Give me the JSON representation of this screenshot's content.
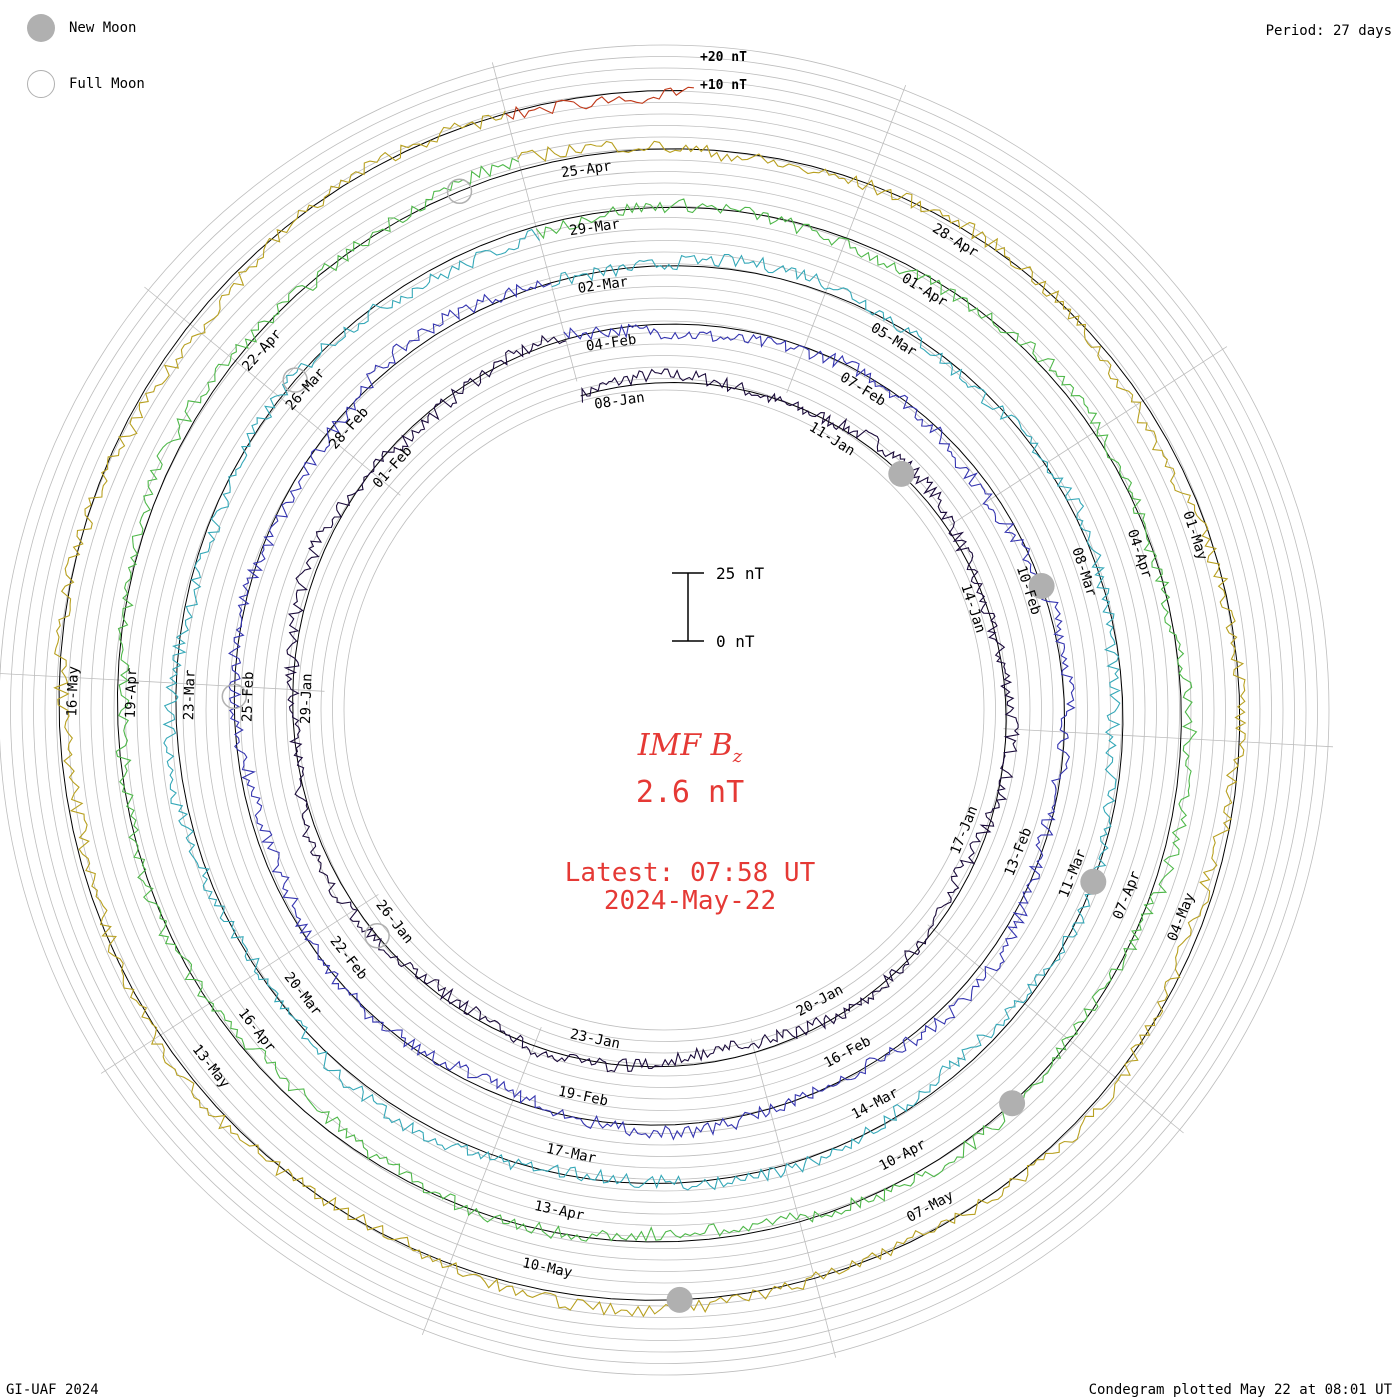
{
  "header": {
    "period": "Period: 27 days",
    "legend": [
      {
        "type": "new",
        "label": "New Moon"
      },
      {
        "type": "full",
        "label": "Full Moon"
      }
    ]
  },
  "footer": {
    "left": "GI-UAF 2024",
    "right": "Condegram plotted May 22 at 08:01 UT"
  },
  "center": {
    "title_main": "IMF B",
    "title_sub": "z",
    "value": "2.6 nT",
    "latest_line1": "Latest: 07:58 UT",
    "latest_line2": "2024-May-22",
    "scale_top": "25 nT",
    "scale_bottom": "0 nT"
  },
  "ring_labels": {
    "plus20": "+20 nT",
    "plus10": "+10 nT"
  },
  "colors": {
    "accent": "#e53935",
    "grid": "#bdbdbd",
    "moon": "#b0b0b0",
    "turns": [
      "#1a0a3a",
      "#3535b0",
      "#35a8b8",
      "#4fb84a",
      "#b8a020",
      "#c03818"
    ]
  },
  "chart_data": {
    "type": "spiral",
    "title": "IMF Bz",
    "period_days": 27,
    "start_date": "2024-01-07",
    "end_date": "2024-05-22",
    "scale_nT": [
      0,
      25
    ],
    "latest_value_nT": 2.6,
    "date_ticks": [
      "08-Jan",
      "11-Jan",
      "14-Jan",
      "17-Jan",
      "20-Jan",
      "23-Jan",
      "26-Jan",
      "29-Jan",
      "01-Feb",
      "04-Feb",
      "07-Feb",
      "10-Feb",
      "13-Feb",
      "16-Feb",
      "19-Feb",
      "22-Feb",
      "25-Feb",
      "28-Feb",
      "02-Mar",
      "05-Mar",
      "08-Mar",
      "11-Mar",
      "14-Mar",
      "17-Mar",
      "20-Mar",
      "23-Mar",
      "26-Mar",
      "29-Mar",
      "01-Apr",
      "04-Apr",
      "07-Apr",
      "10-Apr",
      "13-Apr",
      "16-Apr",
      "19-Apr",
      "22-Apr",
      "25-Apr",
      "28-Apr",
      "01-May",
      "04-May",
      "07-May",
      "10-May",
      "13-May",
      "16-May"
    ],
    "new_moons": [
      "2024-01-11",
      "2024-02-09",
      "2024-03-10",
      "2024-04-08",
      "2024-05-08"
    ],
    "full_moons": [
      "2024-01-25",
      "2024-02-24",
      "2024-03-25",
      "2024-04-23"
    ]
  }
}
